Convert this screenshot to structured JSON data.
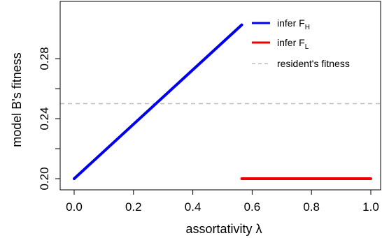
{
  "chart_data": {
    "type": "line",
    "title": "",
    "xlabel": "assortativity λ",
    "ylabel": "model B's fitness",
    "xlim": [
      0.0,
      1.0
    ],
    "ylim": [
      0.195,
      0.305
    ],
    "x_ticks": [
      0.0,
      0.2,
      0.4,
      0.6,
      0.8,
      1.0
    ],
    "x_tick_labels": [
      "0.0",
      "0.2",
      "0.4",
      "0.6",
      "0.8",
      "1.0"
    ],
    "y_ticks": [
      0.2,
      0.24,
      0.28
    ],
    "y_tick_labels": [
      "0.20",
      "0.24",
      "0.28"
    ],
    "grid": false,
    "legend_position": "top-right",
    "series": [
      {
        "name_main": "infer F",
        "name_sub": "H",
        "color": "#0000ee",
        "style": "solid",
        "x": [
          0.0,
          0.565
        ],
        "y": [
          0.2,
          0.3025
        ]
      },
      {
        "name_main": "infer F",
        "name_sub": "L",
        "color": "#ee0000",
        "style": "solid",
        "x": [
          0.565,
          1.0
        ],
        "y": [
          0.2,
          0.2
        ]
      },
      {
        "name_main": "resident's fitness",
        "name_sub": "",
        "color": "#bebebe",
        "style": "dashed",
        "x": [
          0.0,
          1.0
        ],
        "y": [
          0.25,
          0.25
        ]
      }
    ]
  }
}
